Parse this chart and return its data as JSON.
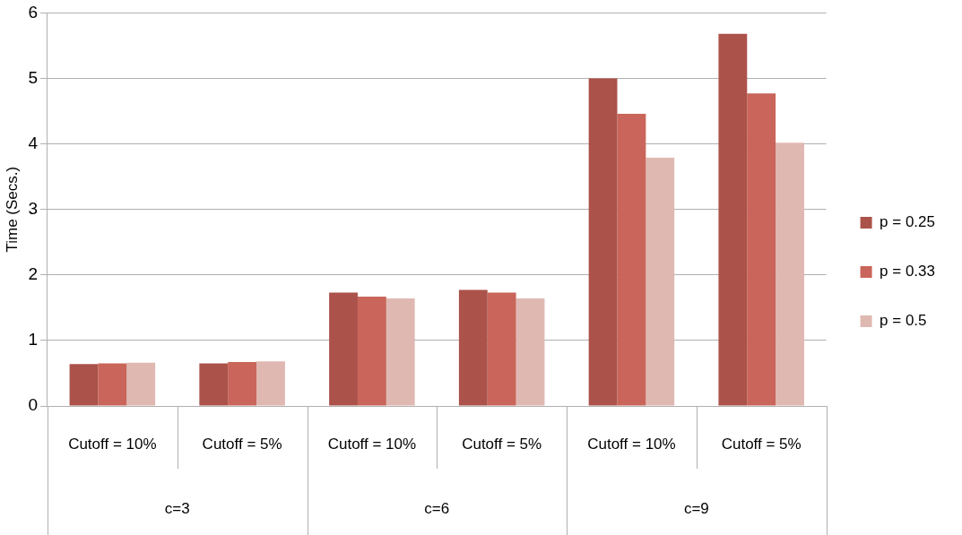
{
  "chart_data": {
    "type": "bar",
    "ylabel": "Time (Secs.)",
    "categories": [
      "Cutoff = 10%",
      "Cutoff = 5%",
      "Cutoff = 10%",
      "Cutoff = 5%",
      "Cutoff = 10%",
      "Cutoff = 5%"
    ],
    "series": [
      {
        "name": "p = 0.25",
        "color": "#ab524a",
        "values": [
          0.64,
          0.65,
          1.73,
          1.77,
          5.0,
          5.68
        ]
      },
      {
        "name": "p = 0.33",
        "color": "#c9655a",
        "values": [
          0.65,
          0.67,
          1.67,
          1.73,
          4.46,
          4.77
        ]
      },
      {
        "name": "p = 0.5",
        "color": "#e0b8b2",
        "values": [
          0.66,
          0.68,
          1.64,
          1.64,
          3.79,
          4.02
        ]
      }
    ],
    "annotations": [
      "c=3",
      "c=6",
      "c=9"
    ],
    "ylim": [
      0,
      6
    ],
    "yticks": [
      0,
      1,
      2,
      3,
      4,
      5,
      6
    ],
    "grid": "y",
    "legend": "right"
  }
}
